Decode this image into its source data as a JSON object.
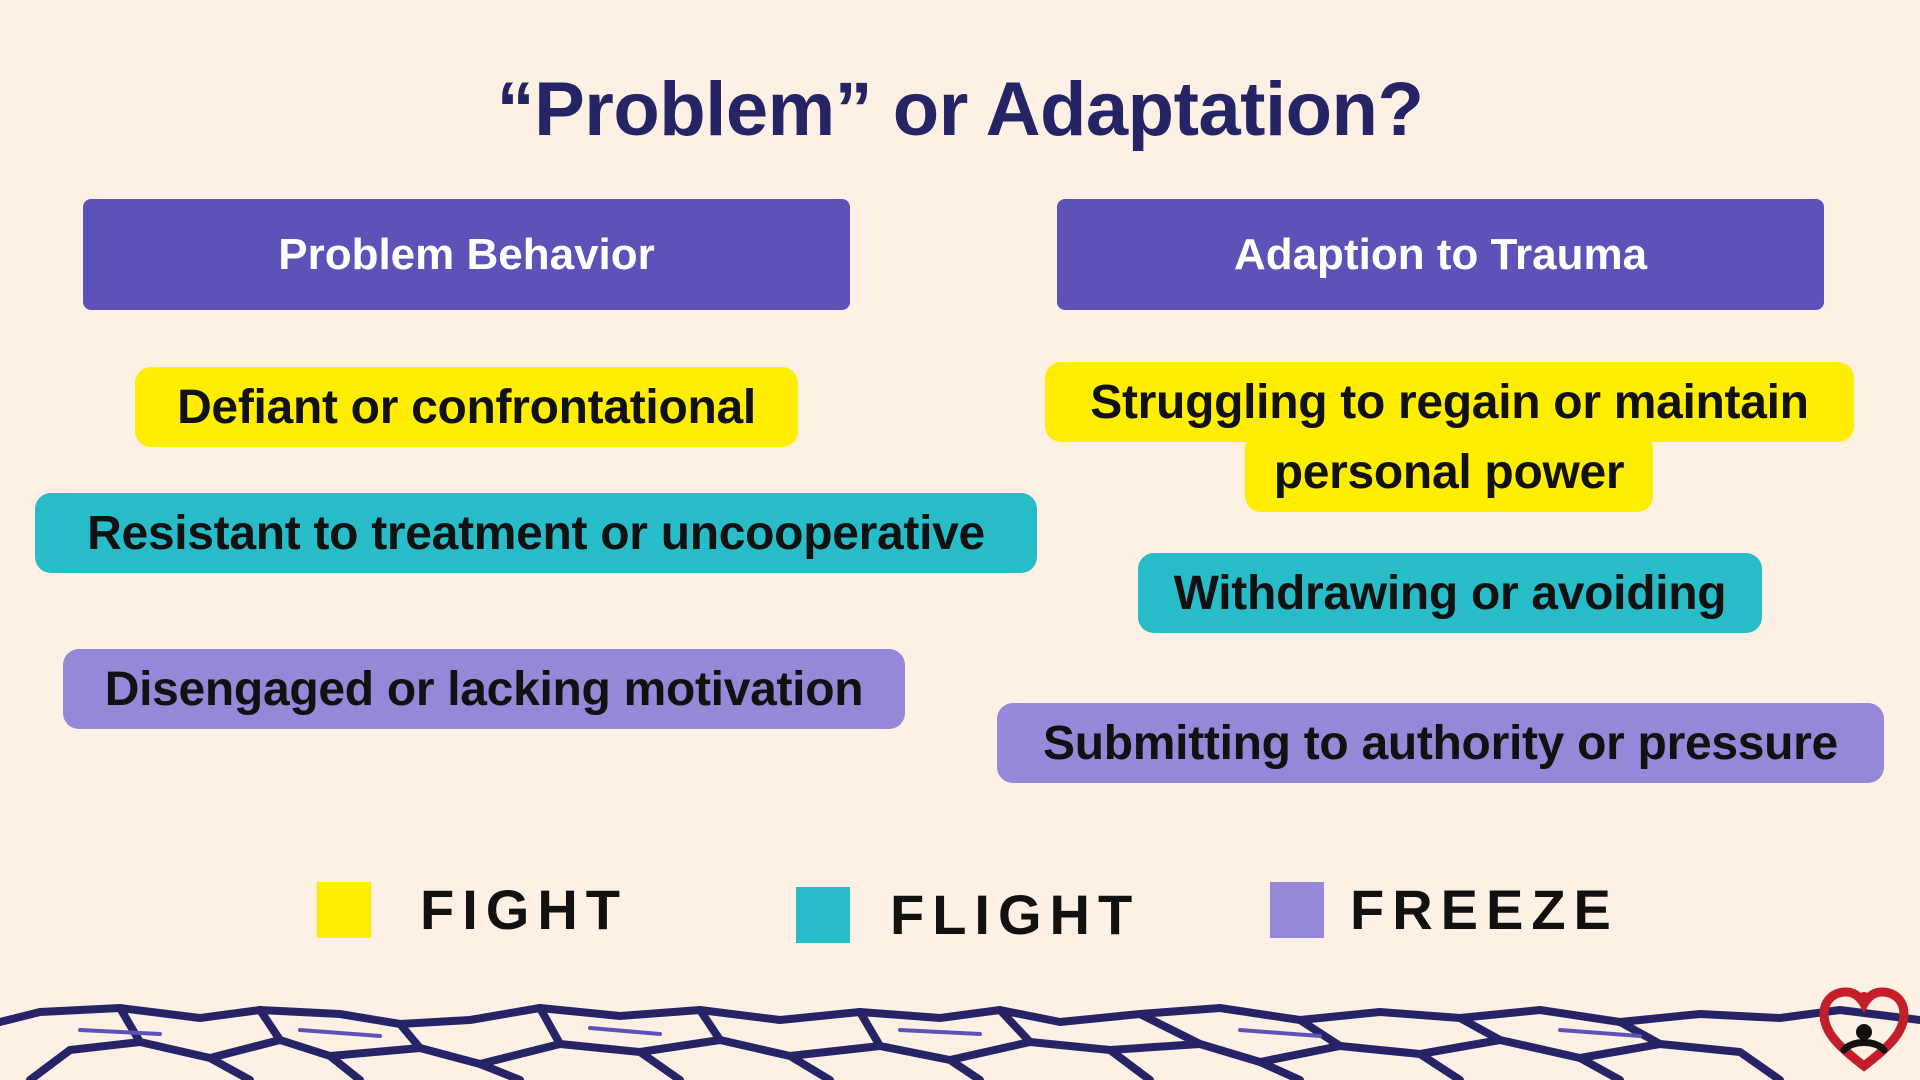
{
  "title": "“Problem” or Adaptation?",
  "columns": {
    "left_header": "Problem Behavior",
    "right_header": "Adaption to Trauma"
  },
  "left_items": [
    {
      "text": "Defiant or confrontational",
      "category": "fight"
    },
    {
      "text": "Resistant to treatment or uncooperative",
      "category": "flight"
    },
    {
      "text": "Disengaged or lacking motivation",
      "category": "freeze"
    }
  ],
  "right_items": [
    {
      "line1": "Struggling to regain or maintain",
      "line2": "personal power",
      "category": "fight"
    },
    {
      "text": "Withdrawing or avoiding",
      "category": "flight"
    },
    {
      "text": "Submitting to authority or pressure",
      "category": "freeze"
    }
  ],
  "legend": [
    {
      "label": "FIGHT",
      "color": "#ffee00"
    },
    {
      "label": "FLIGHT",
      "color": "#27bcc8"
    },
    {
      "label": "FREEZE",
      "color": "#9588d9"
    }
  ],
  "colors": {
    "background": "#fdf0e5",
    "header": "#5d52b8",
    "title": "#252566",
    "fight": "#ffee00",
    "flight": "#27bcc8",
    "freeze": "#9588d9",
    "crackle": "#262466"
  },
  "icons": {
    "logo": "heart-person-logo"
  }
}
